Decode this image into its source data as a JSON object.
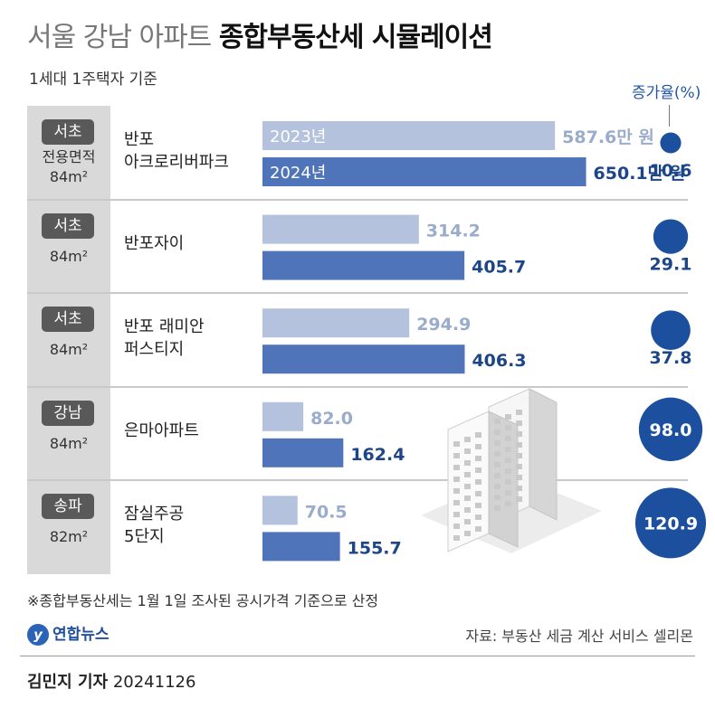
{
  "title": {
    "part1": "서울 강남 아파트",
    "part2": "종합부동산세 시뮬레이션"
  },
  "subtitle": "1세대 1주택자 기준",
  "rate_header": "증가율(%)",
  "colors": {
    "bar_2023": "#b4c2dd",
    "bar_2024": "#4f74ba",
    "bubble": "#1c4f9d",
    "label_2023": "#9aaccc",
    "label_2024": "#1d4688"
  },
  "chart_data": {
    "type": "bar",
    "title": "서울 강남 아파트 종합부동산세 시뮬레이션",
    "unit": "만원",
    "categories": [
      "반포 아크로리버파크",
      "반포자이",
      "반포 래미안 퍼스티지",
      "은마아파트",
      "잠실주공 5단지"
    ],
    "series": [
      {
        "name": "2023년",
        "values": [
          587.6,
          314.2,
          294.9,
          82.0,
          70.5
        ]
      },
      {
        "name": "2024년",
        "values": [
          650.1,
          405.7,
          406.3,
          162.4,
          155.7
        ]
      }
    ],
    "growth_rate_percent": [
      10.6,
      29.1,
      37.8,
      98.0,
      120.9
    ],
    "series_labels_in_bar": [
      "2023년",
      "2024년"
    ],
    "first_row_value_suffix": "만 원"
  },
  "rows": [
    {
      "district": "서초",
      "size": "전용면적\n84m²",
      "name": "반포\n아크로리버파크",
      "v2023": "587.6",
      "v2024": "650.1",
      "rate": "10.6"
    },
    {
      "district": "서초",
      "size": "84m²",
      "name": "반포자이",
      "v2023": "314.2",
      "v2024": "405.7",
      "rate": "29.1"
    },
    {
      "district": "서초",
      "size": "84m²",
      "name": "반포 래미안\n퍼스티지",
      "v2023": "294.9",
      "v2024": "406.3",
      "rate": "37.8"
    },
    {
      "district": "강남",
      "size": "84m²",
      "name": "은마아파트",
      "v2023": "82.0",
      "v2024": "162.4",
      "rate": "98.0"
    },
    {
      "district": "송파",
      "size": "82m²",
      "name": "잠실주공\n5단지",
      "v2023": "70.5",
      "v2024": "155.7",
      "rate": "120.9"
    }
  ],
  "footnote": "※종합부동산세는 1월 1일 조사된 공시가격 기준으로 산정",
  "logo": {
    "mark": "y",
    "text": "연합뉴스"
  },
  "source": "자료: 부동산 세금 계산 서비스 셀리몬",
  "byline": {
    "name": "김민지 기자",
    "date": "20241126"
  }
}
